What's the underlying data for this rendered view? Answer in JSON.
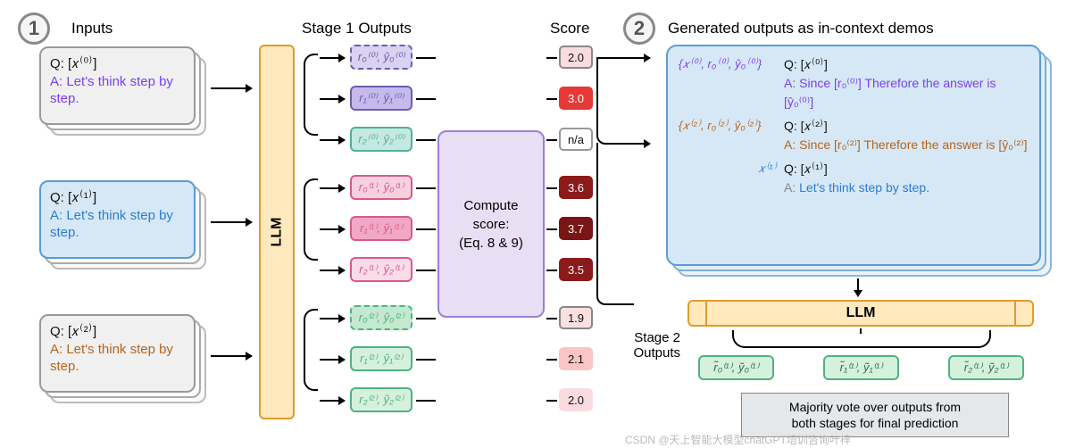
{
  "labels": {
    "inputs": "Inputs",
    "stage1_outputs": "Stage 1 Outputs",
    "score": "Score",
    "demos_title": "Generated outputs as in-context demos",
    "stage2_outputs": "Stage 2\nOutputs",
    "compute": "Compute\nscore:\n(Eq. 8 & 9)",
    "llm": "LLM",
    "vote": "Majority vote over outputs from\nboth stages for final prediction",
    "watermark": "CSDN @天上智能大模型chatGPT培训咨询叶梓"
  },
  "steps": {
    "one": "1",
    "two": "2"
  },
  "colors": {
    "card_gray_bg": "#f0f0f0",
    "card_gray_border": "#999999",
    "card_blue_bg": "#d6e8f5",
    "card_blue_border": "#5b9bd5",
    "purple": "#7b3ff2",
    "blue": "#2b7cd3",
    "brown": "#b5651d",
    "gray_text": "#888888",
    "llm_bg": "#ffe9bd",
    "llm_border": "#e09b2d",
    "compute_bg": "#e8dff5",
    "compute_border": "#9b7fd4",
    "out0_0_bg": "#d9d2f0",
    "out0_0_border": "#6b5fb0",
    "out0_1_bg": "#c5baeb",
    "out0_1_border": "#6b5fb0",
    "out0_2_bg": "#c5e8e0",
    "out0_2_border": "#4db399",
    "out1_0_bg": "#f7d0e0",
    "out1_0_border": "#d85a8a",
    "out1_1_bg": "#f2a8c5",
    "out1_1_border": "#d85a8a",
    "out1_2_bg": "#fadce8",
    "out1_2_border": "#d85a8a",
    "out2_0_bg": "#c5e8d0",
    "out2_0_border": "#4db380",
    "out2_1_bg": "#d5f0dc",
    "out2_1_border": "#4db380",
    "out2_2_bg": "#d5f0dc",
    "out2_2_border": "#4db380",
    "score_2_0_bg": "#fadce0",
    "score_2_0_border": "#aaa",
    "score_3_0_bg": "#e53935",
    "score_3_0_border": "#e53935",
    "score_na_bg": "#ffffff",
    "score_na_border": "#999",
    "score_3_6_bg": "#8b1a1a",
    "score_3_7_bg": "#7a1515",
    "score_3_5_bg": "#8b1a1a",
    "score_1_9_bg": "#fce0e0",
    "score_1_9_border": "#aaa",
    "score_2_1_bg": "#f9c5c5",
    "score_2_0b_bg": "#fadce0",
    "demo_bg": "#d6e8f5",
    "demo_border": "#5b9bd5",
    "s2out_bg": "#d5f0dc",
    "s2out_border": "#4db380",
    "vote_bg": "#e5e8ea"
  },
  "inputs": [
    {
      "q": "Q: [𝑥⁽⁰⁾]",
      "a": "A: Let's think step by step.",
      "color": "#7b3ff2",
      "bg": "#f0f0f0",
      "border": "#999999"
    },
    {
      "q": "Q: [𝑥⁽¹⁾]",
      "a": "A: Let's think step by step.",
      "color": "#2b7cd3",
      "bg": "#d6e8f5",
      "border": "#5b9bd5"
    },
    {
      "q": "Q: [𝑥⁽²⁾]",
      "a": "A: Let's think step by step.",
      "color": "#b5651d",
      "bg": "#f0f0f0",
      "border": "#999999"
    }
  ],
  "stage1": [
    {
      "r": "r₀⁽⁰⁾, ŷ₀⁽⁰⁾",
      "bg": "#d9d2f0",
      "border": "#6b5fb0",
      "dashed": true
    },
    {
      "r": "r₁⁽⁰⁾, ŷ₁⁽⁰⁾",
      "bg": "#c5baeb",
      "border": "#6b5fb0",
      "dashed": false
    },
    {
      "r": "r₂⁽⁰⁾, ŷ₂⁽⁰⁾",
      "bg": "#c5e8e0",
      "border": "#4db399",
      "dashed": false
    },
    {
      "r": "r₀⁽¹⁾, ŷ₀⁽¹⁾",
      "bg": "#f7d0e0",
      "border": "#d85a8a",
      "dashed": false
    },
    {
      "r": "r₁⁽¹⁾, ŷ₁⁽¹⁾",
      "bg": "#f2a8c5",
      "border": "#d85a8a",
      "dashed": false
    },
    {
      "r": "r₂⁽¹⁾, ŷ₂⁽¹⁾",
      "bg": "#fadce8",
      "border": "#d85a8a",
      "dashed": false
    },
    {
      "r": "r₀⁽²⁾, ŷ₀⁽²⁾",
      "bg": "#c5e8d0",
      "border": "#4db380",
      "dashed": true
    },
    {
      "r": "r₁⁽²⁾, ŷ₁⁽²⁾",
      "bg": "#d5f0dc",
      "border": "#4db380",
      "dashed": false
    },
    {
      "r": "r₂⁽²⁾, ŷ₂⁽²⁾",
      "bg": "#d5f0dc",
      "border": "#4db380",
      "dashed": false
    }
  ],
  "scores": [
    {
      "v": "2.0",
      "bg": "#fadce0",
      "border": "#888",
      "fg": "#111",
      "dashed": true
    },
    {
      "v": "3.0",
      "bg": "#e53935",
      "border": "#e53935",
      "fg": "#fff",
      "dashed": false
    },
    {
      "v": "n/a",
      "bg": "#ffffff",
      "border": "#999",
      "fg": "#111",
      "dashed": false
    },
    {
      "v": "3.6",
      "bg": "#8b1a1a",
      "border": "#8b1a1a",
      "fg": "#fff",
      "dashed": false
    },
    {
      "v": "3.7",
      "bg": "#7a1515",
      "border": "#7a1515",
      "fg": "#fff",
      "dashed": false
    },
    {
      "v": "3.5",
      "bg": "#8b1a1a",
      "border": "#8b1a1a",
      "fg": "#fff",
      "dashed": false
    },
    {
      "v": "1.9",
      "bg": "#fce0e0",
      "border": "#888",
      "fg": "#111",
      "dashed": true
    },
    {
      "v": "2.1",
      "bg": "#f9c5c5",
      "border": "#f9c5c5",
      "fg": "#111",
      "dashed": false
    },
    {
      "v": "2.0",
      "bg": "#fadce0",
      "border": "#fadce0",
      "fg": "#111",
      "dashed": false
    }
  ],
  "demos": {
    "tuple0": "{𝑥⁽⁰⁾, r₀⁽⁰⁾, ŷ₀⁽⁰⁾}",
    "line0q": "Q: [𝑥⁽⁰⁾]",
    "line0a": "A: Since [r₀⁽⁰⁾] Therefore the answer is [ŷ₀⁽⁰⁾]",
    "tuple2": "{𝑥⁽²⁾, r₀⁽²⁾, ŷ₀⁽²⁾}",
    "line2q": "Q: [𝑥⁽²⁾]",
    "line2a": "A: Since [r₀⁽²⁾] Therefore the answer is [ŷ₀⁽²⁾]",
    "x1": "𝑥⁽¹⁾",
    "line1q": "Q: [𝑥⁽¹⁾]",
    "line1a": "A: Let's think step by step."
  },
  "stage2": [
    {
      "r": "r̃₀⁽¹⁾, ỹ₀⁽¹⁾"
    },
    {
      "r": "r̃₁⁽¹⁾, ỹ₁⁽¹⁾"
    },
    {
      "r": "r̃₂⁽¹⁾, ỹ₂⁽¹⁾"
    }
  ]
}
